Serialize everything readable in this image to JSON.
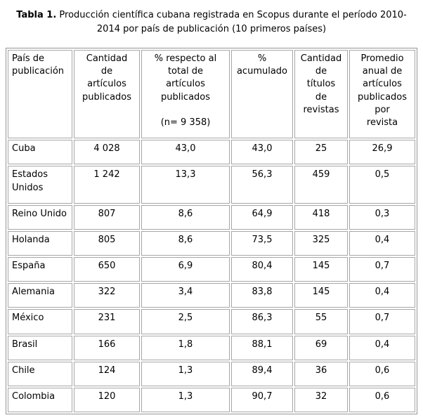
{
  "title": {
    "prefix": "Tabla 1.",
    "text": " Producción científica cubana registrada en Scopus durante el período 2010-2014 por país de publicación (10 primeros países)"
  },
  "table": {
    "headers": [
      "País de\npublicación",
      "Cantidad\nde\nartículos\npublicados",
      "% respecto al\ntotal de\nartículos\npublicados\n\n(n= 9 358)",
      "%\nacumulado",
      "Cantidad\nde\ntítulos\nde\nrevistas",
      "Promedio\nanual de\nartículos\npublicados\npor\nrevista"
    ],
    "rows": [
      [
        "Cuba",
        "4 028",
        "43,0",
        "43,0",
        "25",
        "26,9"
      ],
      [
        "Estados Unidos",
        "1 242",
        "13,3",
        "56,3",
        "459",
        "0,5"
      ],
      [
        "Reino Unido",
        "807",
        "8,6",
        "64,9",
        "418",
        "0,3"
      ],
      [
        "Holanda",
        "805",
        "8,6",
        "73,5",
        "325",
        "0,4"
      ],
      [
        "España",
        "650",
        "6,9",
        "80,4",
        "145",
        "0,7"
      ],
      [
        "Alemania",
        "322",
        "3,4",
        "83,8",
        "145",
        "0,4"
      ],
      [
        "México",
        "231",
        "2,5",
        "86,3",
        "55",
        "0,7"
      ],
      [
        "Brasil",
        "166",
        "1,8",
        "88,1",
        "69",
        "0,4"
      ],
      [
        "Chile",
        "124",
        "1,3",
        "89,4",
        "36",
        "0,6"
      ],
      [
        "Colombia",
        "120",
        "1,3",
        "90,7",
        "32",
        "0,6"
      ]
    ]
  },
  "colors": {
    "outer_border": "#949494",
    "cell_border": "#a6a6a6",
    "text": "#000000",
    "background": "#ffffff"
  }
}
